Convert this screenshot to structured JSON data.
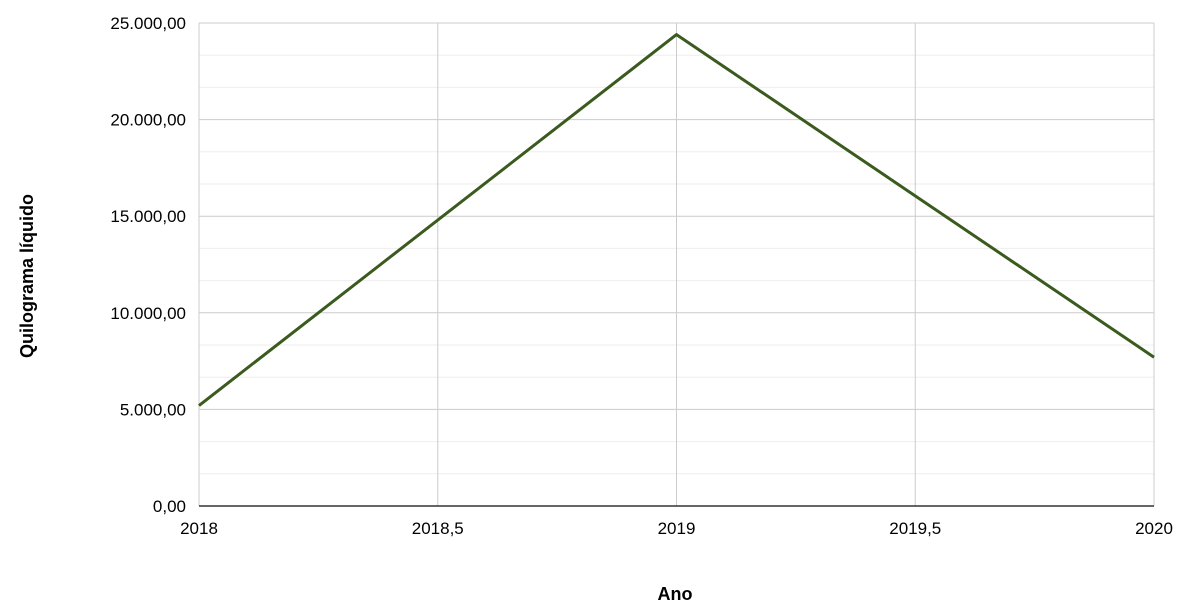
{
  "chart_data": {
    "type": "line",
    "title": "",
    "xlabel": "Ano",
    "ylabel": "Quilograma líquido",
    "xlim": [
      2018,
      2020
    ],
    "ylim": [
      0,
      25000
    ],
    "x_ticks": [
      2018,
      2018.5,
      2019,
      2019.5,
      2020
    ],
    "x_tick_labels": [
      "2018",
      "2018,5",
      "2019",
      "2019,5",
      "2020"
    ],
    "y_ticks": [
      0,
      5000,
      10000,
      15000,
      20000,
      25000
    ],
    "y_tick_labels": [
      "0,00",
      "5.000,00",
      "10.000,00",
      "15.000,00",
      "20.000,00",
      "25.000,00"
    ],
    "grid": true,
    "legend": "none",
    "series": [
      {
        "color": "#3a5a1e",
        "points": [
          {
            "x": 2018,
            "y": 5200
          },
          {
            "x": 2019,
            "y": 24400
          },
          {
            "x": 2020,
            "y": 7700
          }
        ]
      }
    ]
  }
}
